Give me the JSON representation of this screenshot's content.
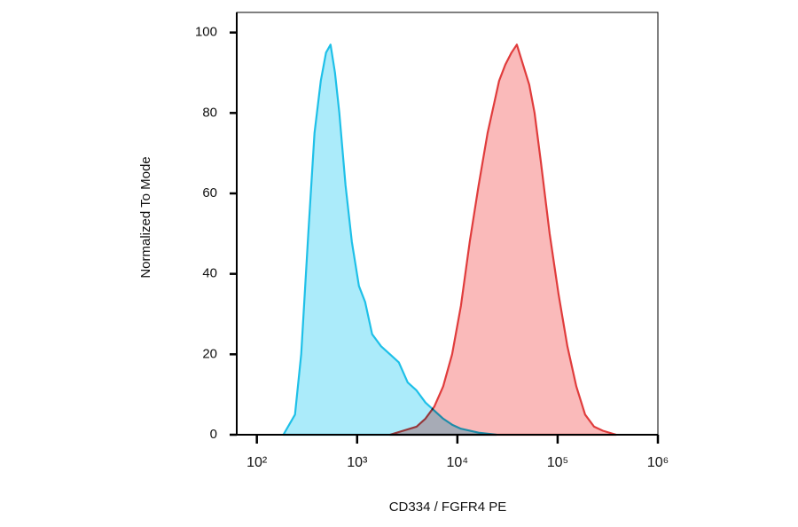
{
  "chart_data": {
    "type": "area",
    "x_label": "CD334 / FGFR4 PE",
    "y_label": "Normalized To Mode",
    "xscale": "log",
    "xlim": [
      63,
      1000000
    ],
    "ylim": [
      0,
      105
    ],
    "xticks": [
      {
        "value": 100,
        "label": "10²"
      },
      {
        "value": 1000,
        "label": "10³"
      },
      {
        "value": 10000,
        "label": "10⁴"
      },
      {
        "value": 100000,
        "label": "10⁵"
      },
      {
        "value": 1000000,
        "label": "10⁶"
      }
    ],
    "yticks": [
      0,
      20,
      40,
      60,
      80,
      100
    ],
    "series": [
      {
        "color": "#1ec0e8",
        "fill": "#8fe4f8",
        "x": [
          184,
          240,
          277,
          326,
          376,
          434,
          490,
          543,
          601,
          665,
          767,
          885,
          1042,
          1202,
          1413,
          1733,
          2124,
          2606,
          3193,
          3917,
          4800,
          5888,
          7211,
          8851,
          10839,
          16300,
          24500
        ],
        "values": [
          0,
          5,
          20,
          50,
          75,
          88,
          95,
          97,
          90,
          80,
          62,
          48,
          37,
          33,
          25,
          22,
          20,
          18,
          13,
          11,
          8,
          6,
          4,
          2.5,
          1.5,
          0.5,
          0
        ]
      },
      {
        "color": "#e03c3c",
        "fill": "#f8a3a3",
        "x": [
          2124,
          3917,
          4800,
          5888,
          7211,
          8851,
          10839,
          13290,
          16300,
          19990,
          23070,
          26060,
          30060,
          34670,
          39170,
          45190,
          52120,
          58880,
          67920,
          83180,
          102000,
          125000,
          153500,
          187900,
          230600,
          282500,
          383700
        ],
        "values": [
          0,
          2,
          4,
          7,
          12,
          20,
          32,
          48,
          62,
          75,
          82,
          88,
          92,
          95,
          97,
          92,
          87,
          80,
          68,
          50,
          35,
          22,
          12,
          5,
          2,
          1,
          0
        ]
      }
    ]
  }
}
